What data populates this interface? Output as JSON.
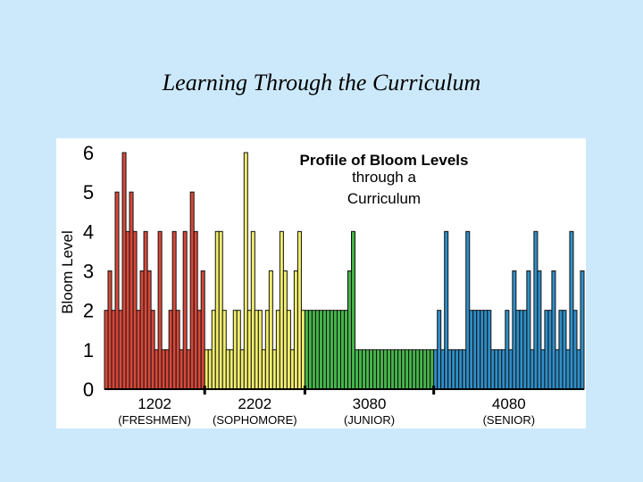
{
  "slide": {
    "title": "Learning Through the Curriculum"
  },
  "chart_data": {
    "type": "bar",
    "title": "Profile of Bloom Levels",
    "subtitle_lines": [
      "through a",
      "Curriculum"
    ],
    "ylabel": "Bloom Level",
    "ylim": [
      0,
      6
    ],
    "yticks": [
      "0",
      "1",
      "2",
      "3",
      "4",
      "5",
      "6"
    ],
    "groups": [
      {
        "course": "1202",
        "level": "(FRESHMEN)",
        "color": "#d9483a",
        "values": [
          2,
          3,
          2,
          5,
          2,
          6,
          4,
          5,
          4,
          2,
          3,
          4,
          3,
          2,
          1,
          4,
          1,
          1,
          2,
          4,
          2,
          1,
          4,
          1,
          5,
          4,
          2,
          3
        ]
      },
      {
        "course": "2202",
        "level": "(SOPHOMORE)",
        "color": "#f2ee6e",
        "values": [
          1,
          1,
          2,
          4,
          4,
          2,
          1,
          1,
          2,
          2,
          1,
          6,
          2,
          4,
          2,
          2,
          1,
          2,
          3,
          1,
          2,
          4,
          3,
          2,
          1,
          3,
          4,
          2
        ]
      },
      {
        "course": "3080",
        "level": "(JUNIOR)",
        "color": "#45b54a",
        "values": [
          2,
          2,
          2,
          2,
          2,
          2,
          2,
          2,
          2,
          2,
          2,
          2,
          3,
          4,
          1,
          1,
          1,
          1,
          1,
          1,
          1,
          1,
          1,
          1,
          1,
          1,
          1,
          1,
          1,
          1,
          1,
          1,
          1,
          1,
          1,
          1
        ]
      },
      {
        "course": "4080",
        "level": "(SENIOR)",
        "color": "#2f8fc9",
        "values": [
          1,
          2,
          1,
          4,
          1,
          1,
          1,
          1,
          1,
          4,
          2,
          2,
          2,
          2,
          2,
          2,
          1,
          1,
          1,
          1,
          2,
          1,
          3,
          2,
          2,
          2,
          3,
          1,
          4,
          3,
          1,
          2,
          2,
          3,
          1,
          2,
          2,
          1,
          4,
          2,
          1,
          3
        ]
      }
    ]
  }
}
